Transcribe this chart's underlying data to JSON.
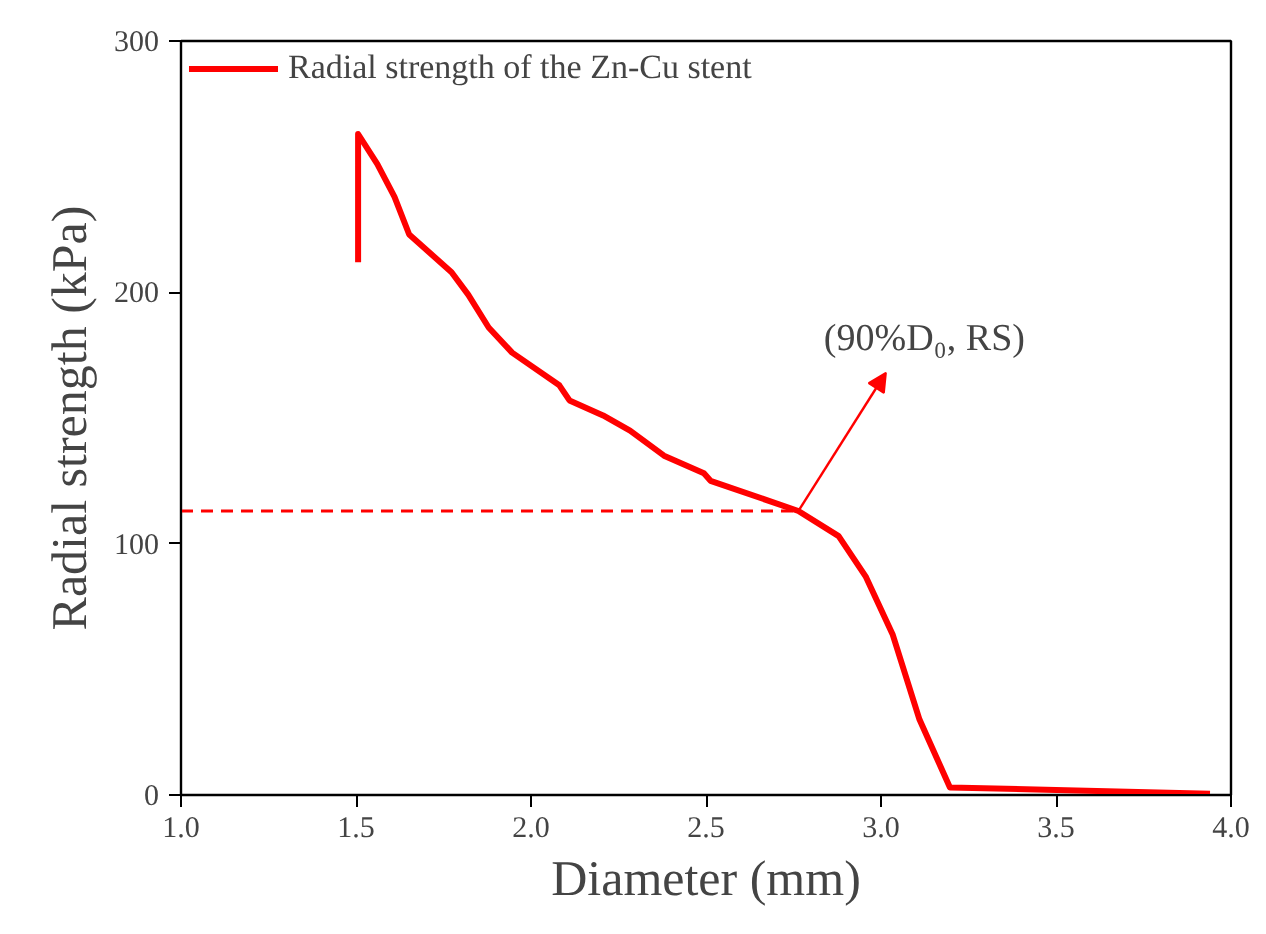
{
  "chart_data": {
    "type": "line",
    "xlabel": "Diameter (mm)",
    "ylabel": "Radial strength (kPa)",
    "xlim": [
      1.0,
      4.0
    ],
    "ylim": [
      0,
      300
    ],
    "xticks": [
      {
        "value": 1.0,
        "label": "1.0"
      },
      1.5,
      {
        "value": 2.0,
        "label": "2.0"
      },
      2.5,
      {
        "value": 3.0,
        "label": "3.0"
      },
      3.5,
      {
        "value": 4.0,
        "label": "4.0"
      }
    ],
    "yticks": [
      0,
      100,
      200,
      300
    ],
    "legend": "top left",
    "grid": false,
    "series": [
      {
        "name": "Radial strength of the Zn-Cu stent",
        "color": "#ff0000",
        "line_style": "solid",
        "x": [
          1.506,
          1.506,
          1.561,
          1.61,
          1.652,
          1.773,
          1.821,
          1.879,
          1.946,
          2.081,
          2.11,
          2.206,
          2.283,
          2.38,
          2.494,
          2.513,
          2.764,
          2.879,
          2.956,
          3.033,
          3.11,
          3.197,
          3.5,
          3.94
        ],
        "values": [
          212,
          263,
          251,
          238,
          223,
          208,
          199,
          186,
          176,
          163,
          157,
          151,
          145,
          135,
          128,
          125,
          113,
          103,
          87,
          64,
          30,
          3,
          2,
          0.5
        ]
      },
      {
        "color": "#ff0000",
        "line_style": "dashed",
        "x": [
          1.0,
          2.764
        ],
        "values": [
          113,
          113
        ]
      }
    ],
    "annotations": [
      {
        "text": "(90%D₀, RS)",
        "x": 2.764,
        "y": 113
      }
    ]
  }
}
